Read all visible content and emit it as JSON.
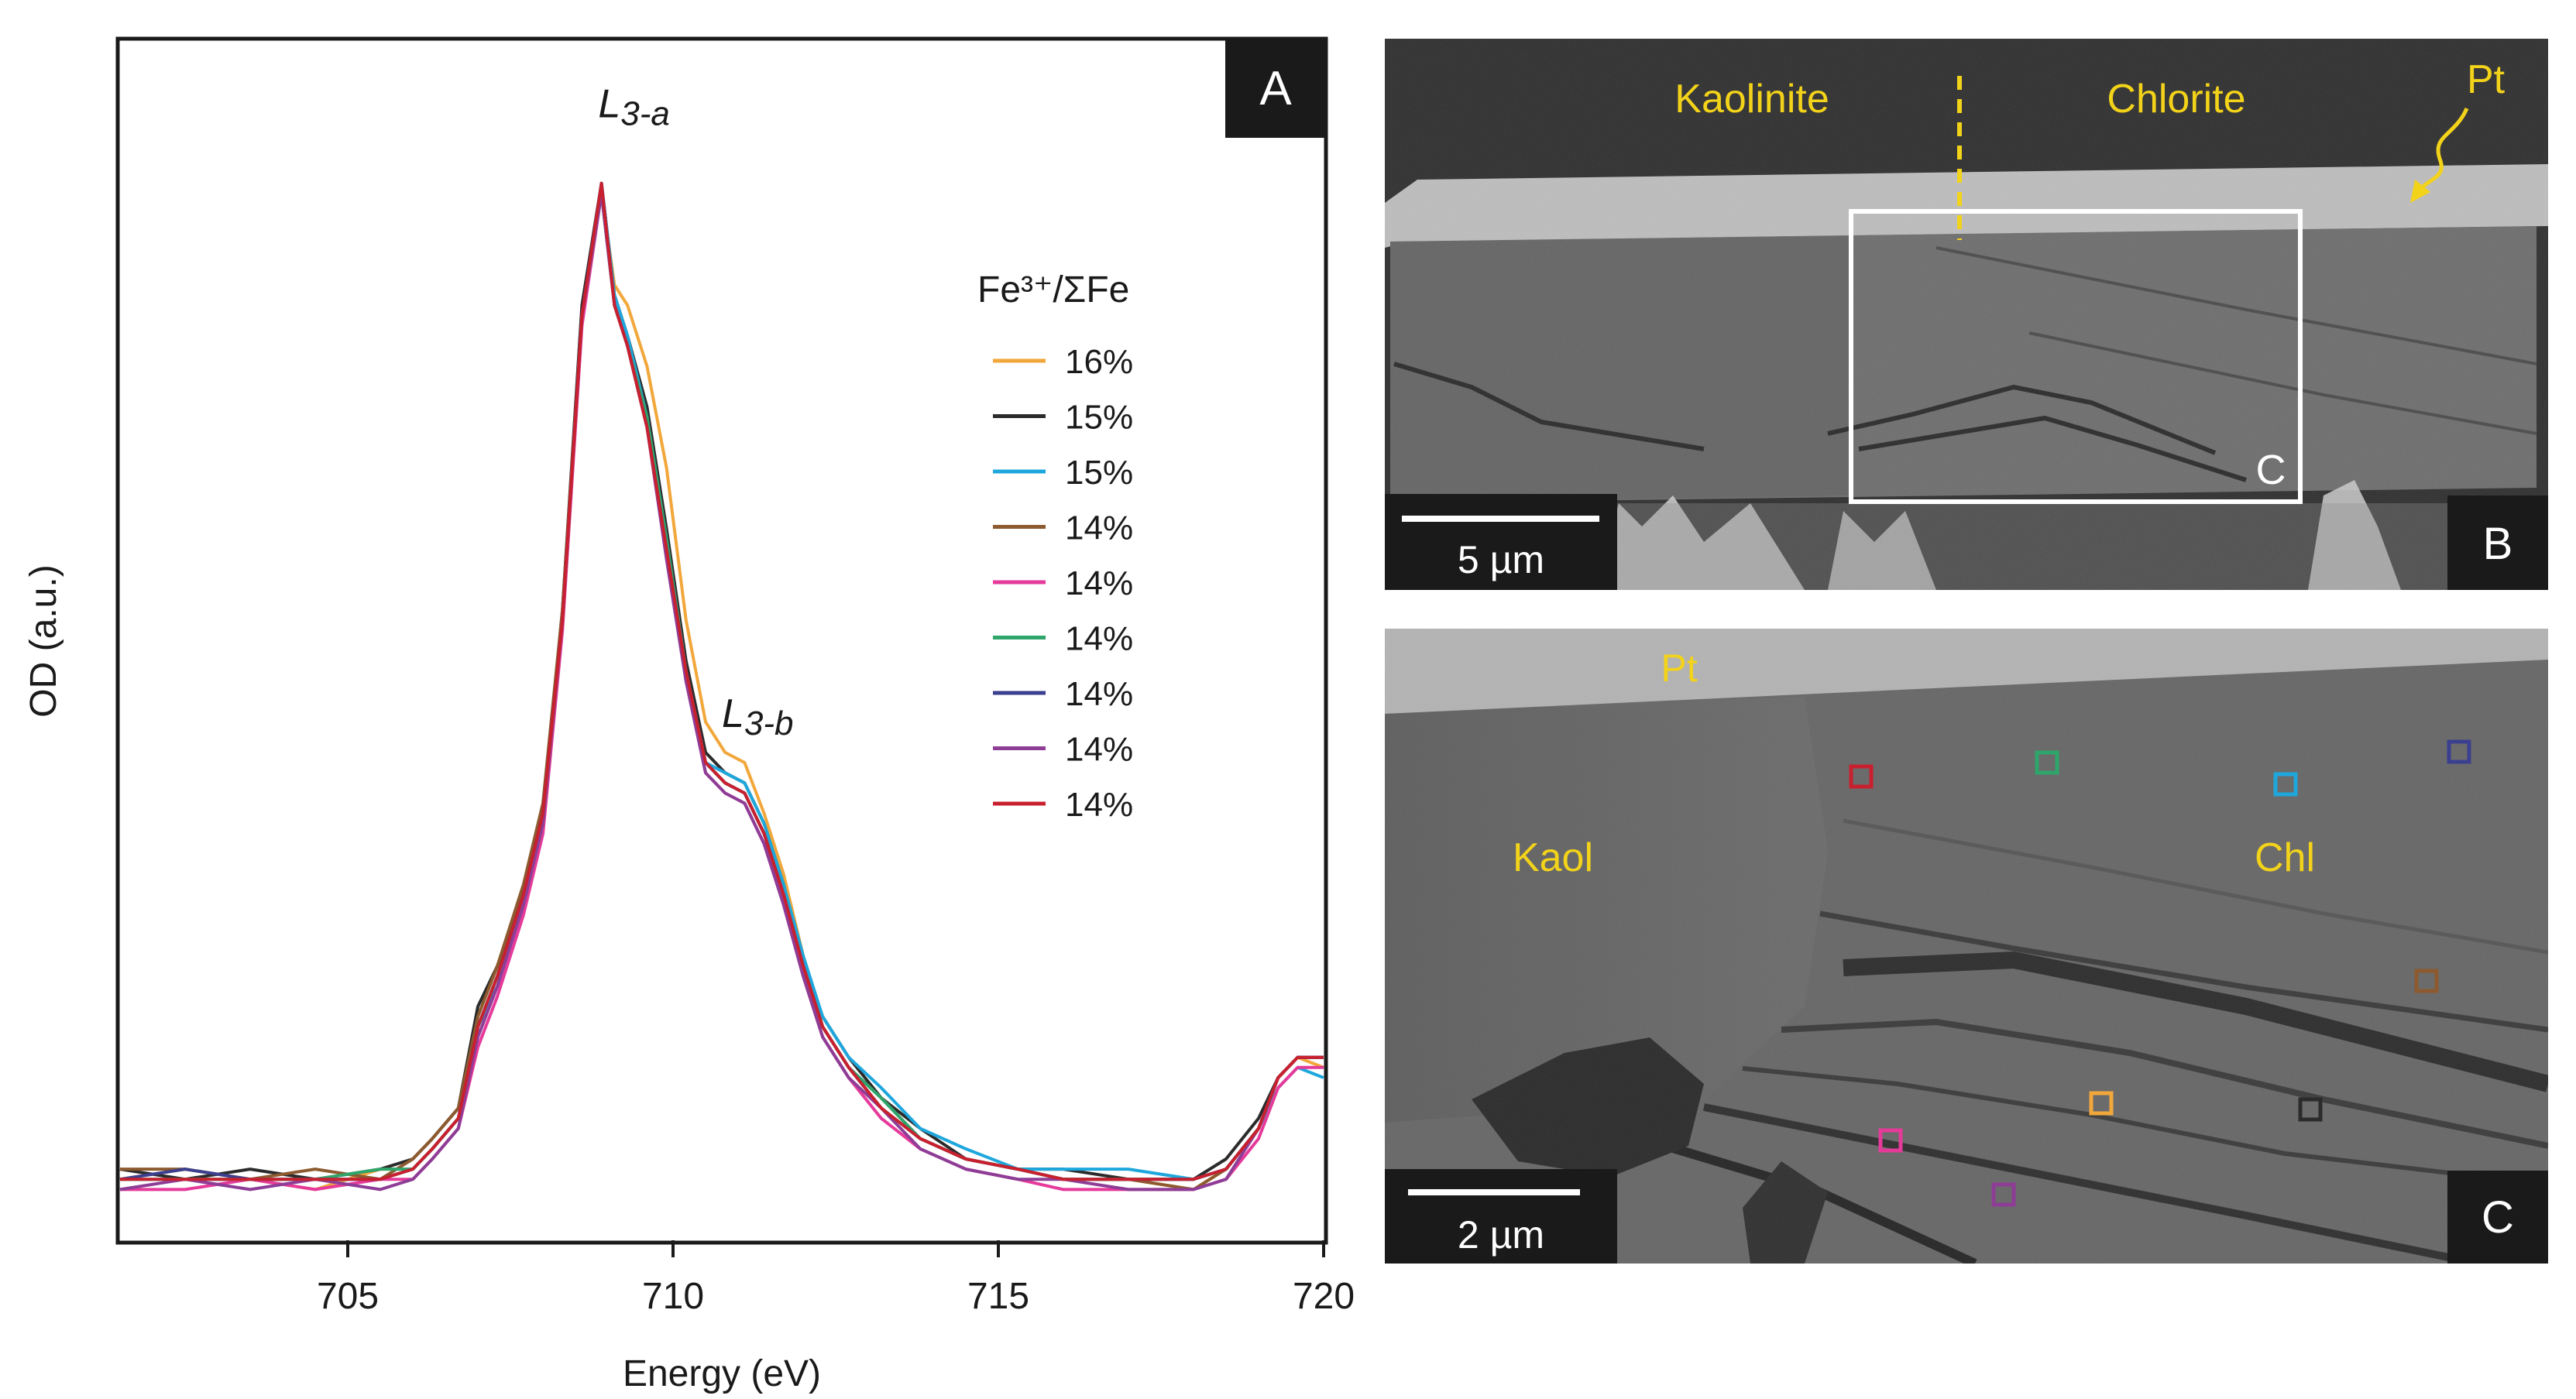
{
  "panels": {
    "a": {
      "label": "A"
    },
    "b": {
      "label": "B",
      "left_mineral": "Kaolinite",
      "right_mineral": "Chlorite",
      "coating": "Pt",
      "box_label": "C",
      "scale_bar": "5 µm"
    },
    "c": {
      "label": "C",
      "coating": "Pt",
      "left_mineral": "Kaol",
      "right_mineral": "Chl",
      "scale_bar": "2 µm"
    }
  },
  "colors": {
    "annotation_yellow": "#f3d31a",
    "label_box": "#1a1a1a"
  },
  "chart_data": {
    "type": "line",
    "title": "",
    "xlabel": "Energy (eV)",
    "ylabel": "OD (a.u.)",
    "xlim": [
      701.5,
      720
    ],
    "ylim": [
      -0.06,
      1.12
    ],
    "xticks": [
      705,
      710,
      715,
      720
    ],
    "grid": false,
    "legend_title": "Fe³⁺/ΣFe",
    "legend_position": "upper-right",
    "peak_labels": [
      {
        "text": "L3-a",
        "main": "L",
        "sub": "3-a",
        "x": 709.4,
        "y": 1.045
      },
      {
        "text": "L3-b",
        "main": "L",
        "sub": "3-b",
        "x": 711.3,
        "y": 0.445
      }
    ],
    "x": [
      701.5,
      702.5,
      703.5,
      704.5,
      705.5,
      706.0,
      706.3,
      706.7,
      707.0,
      707.3,
      707.7,
      708.0,
      708.3,
      708.6,
      708.9,
      709.1,
      709.3,
      709.6,
      709.9,
      710.2,
      710.5,
      710.8,
      711.1,
      711.4,
      711.7,
      712.0,
      712.3,
      712.7,
      713.2,
      713.8,
      714.5,
      715.3,
      716.0,
      717.0,
      718.0,
      718.5,
      719.0,
      719.3,
      719.6,
      720.0
    ],
    "series": [
      {
        "name": "16%",
        "color": "#f2a73b",
        "values": [
          0.0,
          0.01,
          0.0,
          -0.01,
          0.01,
          0.01,
          0.03,
          0.06,
          0.15,
          0.2,
          0.27,
          0.35,
          0.55,
          0.85,
          0.97,
          0.88,
          0.86,
          0.8,
          0.7,
          0.55,
          0.45,
          0.42,
          0.41,
          0.36,
          0.3,
          0.22,
          0.15,
          0.11,
          0.07,
          0.04,
          0.02,
          0.01,
          0.0,
          0.0,
          -0.01,
          0.01,
          0.05,
          0.1,
          0.12,
          0.11
        ]
      },
      {
        "name": "15%",
        "color": "#2b2b2b",
        "values": [
          0.01,
          0.0,
          0.01,
          0.0,
          0.01,
          0.02,
          0.04,
          0.07,
          0.17,
          0.21,
          0.28,
          0.36,
          0.56,
          0.86,
          0.98,
          0.87,
          0.83,
          0.76,
          0.64,
          0.51,
          0.42,
          0.4,
          0.39,
          0.35,
          0.29,
          0.21,
          0.16,
          0.12,
          0.08,
          0.05,
          0.02,
          0.01,
          0.01,
          0.0,
          0.0,
          0.02,
          0.06,
          0.1,
          0.12,
          0.12
        ]
      },
      {
        "name": "15%",
        "color": "#1ea7dc",
        "values": [
          0.0,
          0.0,
          0.0,
          0.0,
          0.0,
          0.01,
          0.03,
          0.06,
          0.15,
          0.19,
          0.27,
          0.35,
          0.55,
          0.85,
          0.98,
          0.87,
          0.83,
          0.75,
          0.63,
          0.5,
          0.41,
          0.4,
          0.39,
          0.35,
          0.29,
          0.22,
          0.16,
          0.12,
          0.09,
          0.05,
          0.03,
          0.01,
          0.01,
          0.01,
          0.0,
          0.01,
          0.05,
          0.09,
          0.11,
          0.1
        ]
      },
      {
        "name": "14%",
        "color": "#8c5a2e",
        "values": [
          0.01,
          0.01,
          0.0,
          0.01,
          0.0,
          0.02,
          0.04,
          0.07,
          0.16,
          0.21,
          0.29,
          0.37,
          0.56,
          0.85,
          0.97,
          0.86,
          0.82,
          0.74,
          0.62,
          0.5,
          0.41,
          0.39,
          0.38,
          0.34,
          0.28,
          0.21,
          0.15,
          0.11,
          0.08,
          0.04,
          0.02,
          0.01,
          0.0,
          0.0,
          -0.01,
          0.01,
          0.05,
          0.1,
          0.12,
          0.12
        ]
      },
      {
        "name": "14%",
        "color": "#e63a9a",
        "values": [
          -0.01,
          -0.01,
          0.0,
          -0.01,
          0.0,
          0.0,
          0.02,
          0.05,
          0.13,
          0.18,
          0.26,
          0.34,
          0.54,
          0.84,
          0.97,
          0.86,
          0.82,
          0.74,
          0.62,
          0.49,
          0.4,
          0.38,
          0.37,
          0.33,
          0.27,
          0.2,
          0.14,
          0.1,
          0.06,
          0.03,
          0.01,
          0.0,
          -0.01,
          -0.01,
          -0.01,
          0.0,
          0.04,
          0.09,
          0.11,
          0.11
        ]
      },
      {
        "name": "14%",
        "color": "#2ea56b",
        "values": [
          0.0,
          0.0,
          0.0,
          0.0,
          0.01,
          0.01,
          0.03,
          0.06,
          0.15,
          0.2,
          0.27,
          0.35,
          0.55,
          0.85,
          0.97,
          0.86,
          0.82,
          0.75,
          0.63,
          0.5,
          0.41,
          0.39,
          0.38,
          0.34,
          0.28,
          0.21,
          0.15,
          0.11,
          0.08,
          0.04,
          0.02,
          0.01,
          0.0,
          0.0,
          0.0,
          0.01,
          0.05,
          0.1,
          0.12,
          0.12
        ]
      },
      {
        "name": "14%",
        "color": "#3b3f8f",
        "values": [
          0.0,
          0.01,
          0.0,
          0.0,
          0.0,
          0.01,
          0.03,
          0.06,
          0.15,
          0.2,
          0.28,
          0.36,
          0.55,
          0.85,
          0.98,
          0.86,
          0.82,
          0.74,
          0.62,
          0.5,
          0.41,
          0.39,
          0.38,
          0.34,
          0.28,
          0.21,
          0.15,
          0.11,
          0.07,
          0.04,
          0.02,
          0.01,
          0.0,
          0.0,
          0.0,
          0.01,
          0.05,
          0.1,
          0.12,
          0.12
        ]
      },
      {
        "name": "14%",
        "color": "#8e3d96",
        "values": [
          -0.01,
          0.0,
          -0.01,
          0.0,
          -0.01,
          0.0,
          0.02,
          0.05,
          0.14,
          0.19,
          0.27,
          0.35,
          0.55,
          0.85,
          0.97,
          0.86,
          0.82,
          0.74,
          0.61,
          0.49,
          0.4,
          0.38,
          0.37,
          0.33,
          0.27,
          0.2,
          0.14,
          0.1,
          0.07,
          0.03,
          0.01,
          0.0,
          0.0,
          -0.01,
          -0.01,
          0.0,
          0.05,
          0.1,
          0.12,
          0.12
        ]
      },
      {
        "name": "14%",
        "color": "#c8202e",
        "values": [
          0.0,
          0.0,
          0.0,
          0.0,
          0.0,
          0.01,
          0.03,
          0.06,
          0.15,
          0.2,
          0.28,
          0.36,
          0.55,
          0.85,
          0.98,
          0.86,
          0.82,
          0.74,
          0.62,
          0.5,
          0.41,
          0.39,
          0.38,
          0.34,
          0.28,
          0.21,
          0.15,
          0.11,
          0.07,
          0.04,
          0.02,
          0.01,
          0.0,
          0.0,
          0.0,
          0.01,
          0.05,
          0.1,
          0.12,
          0.12
        ]
      }
    ]
  }
}
